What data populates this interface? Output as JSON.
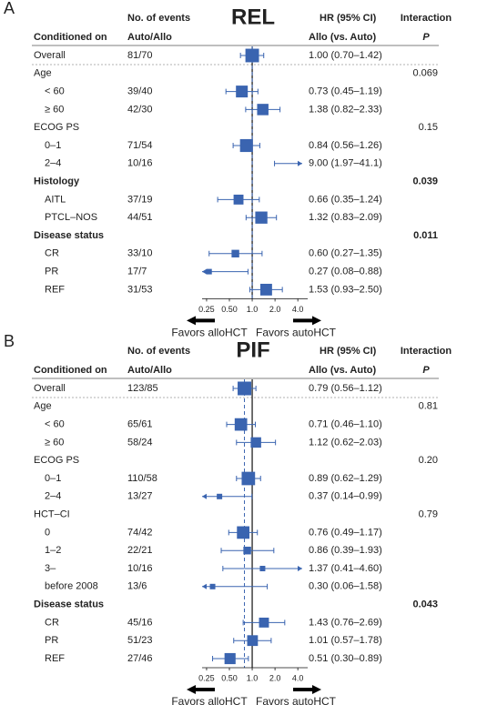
{
  "chart_data": [
    {
      "type": "forest",
      "panel": "A",
      "title": "REL",
      "headers": {
        "events_1": "No. of events",
        "events_2": "Auto/Allo",
        "hr_1": "HR (95% CI)",
        "hr_2": "Allo (vs. Auto)",
        "p_1": "Interaction",
        "p_2": "P",
        "label": "Conditioned on"
      },
      "xscale": "log",
      "xlim": [
        0.218,
        5.4
      ],
      "xticks": [
        {
          "value": 0.25,
          "label": "0.25"
        },
        {
          "value": 0.5,
          "label": "0.50"
        },
        {
          "value": 1,
          "label": "1.0"
        },
        {
          "value": 2,
          "label": "2.0"
        },
        {
          "value": 4,
          "label": "4.0"
        }
      ],
      "color": "#3a64b0",
      "favors": [
        "Favors alloHCT",
        "Favors autoHCT"
      ],
      "rows": [
        {
          "label": "Overall",
          "events": "81/70",
          "hr": 1.0,
          "ci": [
            0.7,
            1.42
          ],
          "hr_label": "1.00 (0.70–1.42)"
        },
        {
          "label": "Age",
          "p": "0.069"
        },
        {
          "label": "< 60",
          "events": "39/40",
          "hr": 0.73,
          "ci": [
            0.45,
            1.19
          ],
          "hr_label": "0.73 (0.45–1.19)"
        },
        {
          "label": "≥ 60",
          "events": "42/30",
          "hr": 1.38,
          "ci": [
            0.82,
            2.33
          ],
          "hr_label": "1.38 (0.82–2.33)"
        },
        {
          "label": "ECOG PS",
          "p": "0.15"
        },
        {
          "label": "0–1",
          "events": "71/54",
          "hr": 0.84,
          "ci": [
            0.56,
            1.26
          ],
          "hr_label": "0.84 (0.56–1.26)"
        },
        {
          "label": "2–4",
          "events": "10/16",
          "hr": 9.0,
          "ci": [
            1.97,
            41.1
          ],
          "hr_label": "9.00 (1.97–41.1)"
        },
        {
          "label": "Histology",
          "p": "0.039",
          "bold": true
        },
        {
          "label": "AITL",
          "events": "37/19",
          "hr": 0.66,
          "ci": [
            0.35,
            1.24
          ],
          "hr_label": "0.66 (0.35–1.24)"
        },
        {
          "label": "PTCL–NOS",
          "events": "44/51",
          "hr": 1.32,
          "ci": [
            0.83,
            2.09
          ],
          "hr_label": "1.32 (0.83–2.09)"
        },
        {
          "label": "Disease status",
          "p": "0.011",
          "bold": true
        },
        {
          "label": "CR",
          "events": "33/10",
          "hr": 0.6,
          "ci": [
            0.27,
            1.35
          ],
          "hr_label": "0.60 (0.27–1.35)"
        },
        {
          "label": "PR",
          "events": "17/7",
          "hr": 0.27,
          "ci": [
            0.08,
            0.88
          ],
          "hr_label": "0.27 (0.08–0.88)"
        },
        {
          "label": "REF",
          "events": "31/53",
          "hr": 1.53,
          "ci": [
            0.93,
            2.5
          ],
          "hr_label": "1.53 (0.93–2.50)"
        }
      ]
    },
    {
      "type": "forest",
      "panel": "B",
      "title": "PIF",
      "headers": {
        "events_1": "No. of events",
        "events_2": "Auto/Allo",
        "hr_1": "HR (95% CI)",
        "hr_2": "Allo (vs. Auto)",
        "p_1": "Interaction",
        "p_2": "P",
        "label": "Conditioned on"
      },
      "xscale": "log",
      "xlim": [
        0.218,
        5.4
      ],
      "xticks": [
        {
          "value": 0.25,
          "label": "0.25"
        },
        {
          "value": 0.5,
          "label": "0.50"
        },
        {
          "value": 1,
          "label": "1.0"
        },
        {
          "value": 2,
          "label": "2.0"
        },
        {
          "value": 4,
          "label": "4.0"
        }
      ],
      "color": "#3a64b0",
      "favors": [
        "Favors alloHCT",
        "Favors autoHCT"
      ],
      "rows": [
        {
          "label": "Overall",
          "events": "123/85",
          "hr": 0.79,
          "ci": [
            0.56,
            1.12
          ],
          "hr_label": "0.79 (0.56–1.12)"
        },
        {
          "label": "Age",
          "p": "0.81"
        },
        {
          "label": "< 60",
          "events": "65/61",
          "hr": 0.71,
          "ci": [
            0.46,
            1.1
          ],
          "hr_label": "0.71 (0.46–1.10)"
        },
        {
          "label": "≥ 60",
          "events": "58/24",
          "hr": 1.12,
          "ci": [
            0.62,
            2.03
          ],
          "hr_label": "1.12 (0.62–2.03)"
        },
        {
          "label": "ECOG PS",
          "p": "0.20"
        },
        {
          "label": "0–1",
          "events": "110/58",
          "hr": 0.89,
          "ci": [
            0.62,
            1.29
          ],
          "hr_label": "0.89 (0.62–1.29)"
        },
        {
          "label": "2–4",
          "events": "13/27",
          "hr": 0.37,
          "ci": [
            0.14,
            0.99
          ],
          "hr_label": "0.37 (0.14–0.99)"
        },
        {
          "label": "HCT–CI",
          "p": "0.79"
        },
        {
          "label": "0",
          "events": "74/42",
          "hr": 0.76,
          "ci": [
            0.49,
            1.17
          ],
          "hr_label": "0.76 (0.49–1.17)"
        },
        {
          "label": "1–2",
          "events": "22/21",
          "hr": 0.86,
          "ci": [
            0.39,
            1.93
          ],
          "hr_label": "0.86 (0.39–1.93)"
        },
        {
          "label": "3–",
          "events": "10/16",
          "hr": 1.37,
          "ci": [
            0.41,
            4.6
          ],
          "hr_label": "1.37 (0.41–4.60)"
        },
        {
          "label": "before 2008",
          "events": "13/6",
          "hr": 0.3,
          "ci": [
            0.06,
            1.58
          ],
          "hr_label": "0.30 (0.06–1.58)"
        },
        {
          "label": "Disease status",
          "p": "0.043",
          "bold": true
        },
        {
          "label": "CR",
          "events": "45/16",
          "hr": 1.43,
          "ci": [
            0.76,
            2.69
          ],
          "hr_label": "1.43 (0.76–2.69)"
        },
        {
          "label": "PR",
          "events": "51/23",
          "hr": 1.01,
          "ci": [
            0.57,
            1.78
          ],
          "hr_label": "1.01 (0.57–1.78)"
        },
        {
          "label": "REF",
          "events": "27/46",
          "hr": 0.51,
          "ci": [
            0.3,
            0.89
          ],
          "hr_label": "0.51 (0.30–0.89)"
        }
      ]
    }
  ]
}
